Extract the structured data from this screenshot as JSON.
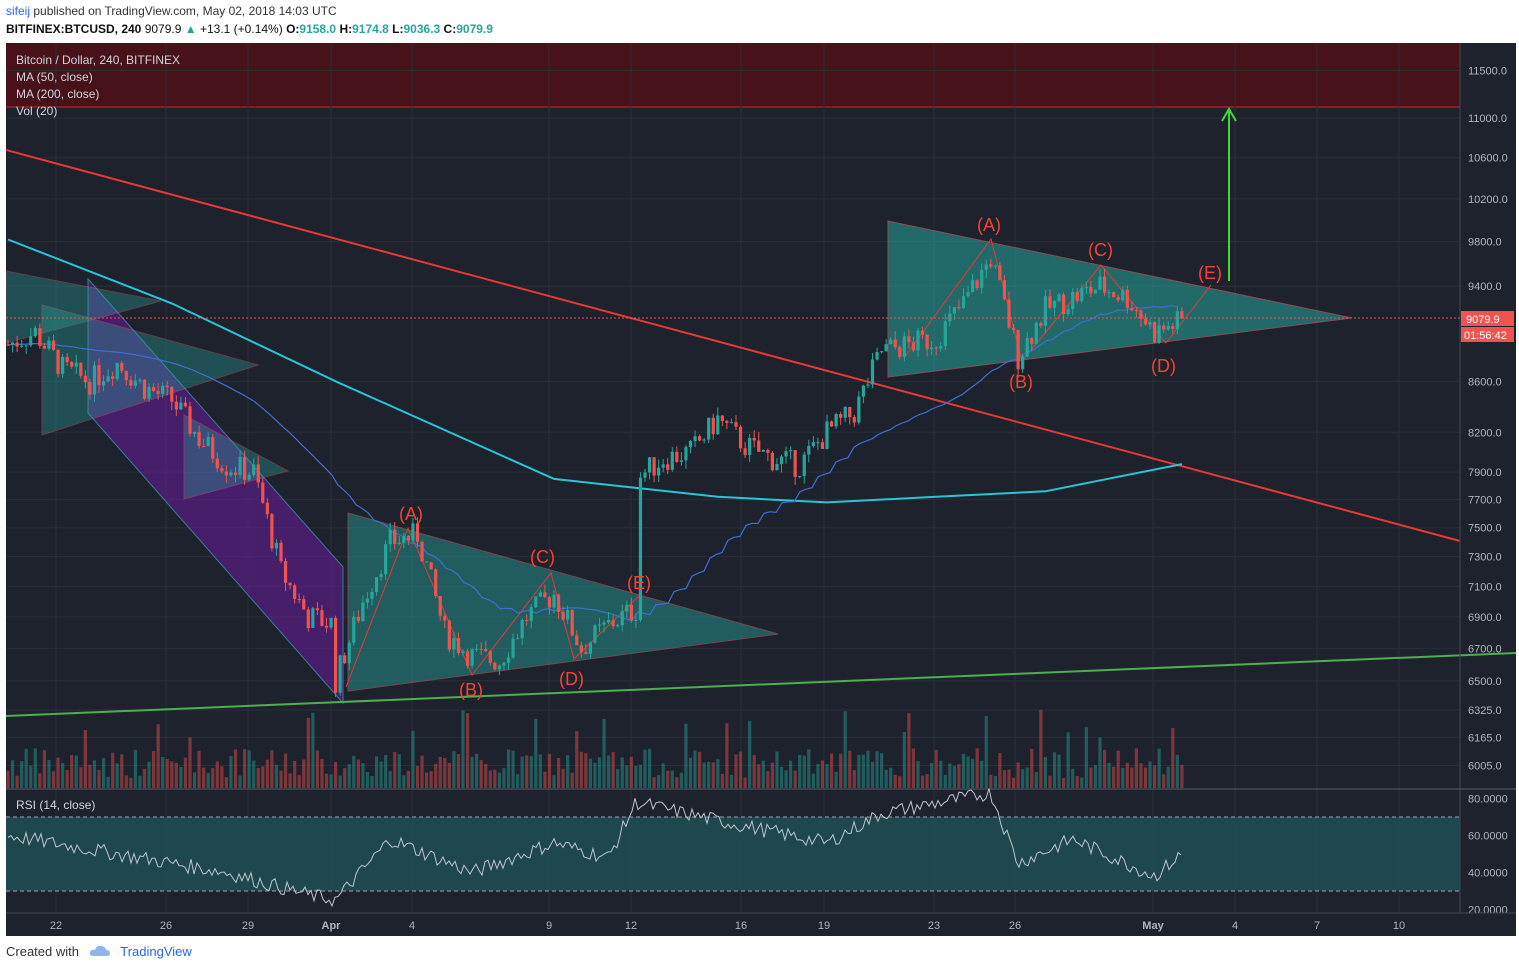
{
  "header": {
    "author": "sifeij",
    "published": "published on TradingView.com, May 02, 2018 14:03 UTC",
    "symbol": "BITFINEX:BTCUSD, 240",
    "last": "9079.9",
    "change": "+13.1 (+0.14%)",
    "o_label": "O:",
    "o": "9158.0",
    "h_label": "H:",
    "h": "9174.8",
    "l_label": "L:",
    "l": "9036.3",
    "c_label": "C:",
    "c": "9079.9"
  },
  "legend": {
    "title": "Bitcoin / Dollar, 240, BITFINEX",
    "ma50": "MA (50, close)",
    "ma200": "MA (200, close)",
    "vol": "Vol (20)",
    "rsi": "RSI (14, close)"
  },
  "price_labels": {
    "last_price": "9079.9",
    "countdown": "01:56:42"
  },
  "annotations": {
    "left_A": "(A)",
    "left_B": "(B)",
    "left_C": "(C)",
    "left_D": "(D)",
    "left_E": "(E)",
    "right_A": "(A)",
    "right_B": "(B)",
    "right_C": "(C)",
    "right_D": "(D)",
    "right_E": "(E)"
  },
  "footer": {
    "created_with": "Created with",
    "brand": "TradingView"
  },
  "colors": {
    "background": "#1e222d",
    "up": "#26a69a",
    "down": "#ef5350",
    "ma50": "#3d6fd1",
    "ma200": "#26c6da",
    "trend_red": "#e53935",
    "trend_green": "#4caf50",
    "target_arrow": "#43d43a",
    "resistance_zone": "#5a141c",
    "wave_label": "#f44336"
  },
  "chart_data": {
    "type": "candlestick",
    "interval": "240",
    "y_axis_ticks": [
      "11500.0",
      "11000.0",
      "10600.0",
      "10200.0",
      "9800.0",
      "9400.0",
      "9079.9",
      "8600.0",
      "8200.0",
      "7900.0",
      "7700.0",
      "7500.0",
      "7300.0",
      "7100.0",
      "6900.0",
      "6700.0",
      "6500.0",
      "6325.0",
      "6165.0",
      "6005.0"
    ],
    "y_axis_scale": "log",
    "price_range": [
      5880,
      11800
    ],
    "x_axis_ticks": [
      "22",
      "26",
      "29",
      "Apr",
      "4",
      "9",
      "12",
      "16",
      "19",
      "23",
      "26",
      "May",
      "4",
      "7",
      "10"
    ],
    "rsi_ticks": [
      "80.0000",
      "60.0000",
      "40.0000",
      "20.0000"
    ],
    "rsi_bands": [
      30,
      70
    ],
    "resistance_zone": [
      11000,
      11800
    ],
    "target_arrow": {
      "from": 9450,
      "to": 11000
    },
    "close_path": [
      [
        "03-20",
        8900
      ],
      [
        "03-21",
        9000
      ],
      [
        "03-22",
        8700
      ],
      [
        "03-23",
        8600
      ],
      [
        "03-24",
        8750
      ],
      [
        "03-25",
        8550
      ],
      [
        "03-26",
        8450
      ],
      [
        "03-27",
        8150
      ],
      [
        "03-28",
        7950
      ],
      [
        "03-29",
        7900
      ],
      [
        "03-30",
        7200
      ],
      [
        "03-31",
        6900
      ],
      [
        "04-01",
        6850
      ],
      [
        "04-01",
        6500
      ],
      [
        "04-02",
        7000
      ],
      [
        "04-03",
        7400
      ],
      [
        "04-04",
        7450
      ],
      [
        "04-05",
        6800
      ],
      [
        "04-06",
        6650
      ],
      [
        "04-07",
        6620
      ],
      [
        "04-08",
        6900
      ],
      [
        "04-09",
        7050
      ],
      [
        "04-10",
        6700
      ],
      [
        "04-11",
        6850
      ],
      [
        "04-12",
        6950
      ],
      [
        "04-12",
        7850
      ],
      [
        "04-13",
        8000
      ],
      [
        "04-14",
        8050
      ],
      [
        "04-15",
        8300
      ],
      [
        "04-16",
        8100
      ],
      [
        "04-17",
        8000
      ],
      [
        "04-18",
        7950
      ],
      [
        "04-19",
        8200
      ],
      [
        "04-20",
        8350
      ],
      [
        "04-21",
        8850
      ],
      [
        "04-22",
        8900
      ],
      [
        "04-23",
        8950
      ],
      [
        "04-24",
        9250
      ],
      [
        "04-25",
        9650
      ],
      [
        "04-26",
        8800
      ],
      [
        "04-27",
        9200
      ],
      [
        "04-28",
        9300
      ],
      [
        "04-29",
        9400
      ],
      [
        "04-30",
        9300
      ],
      [
        "05-01",
        9000
      ],
      [
        "05-02",
        9100
      ]
    ],
    "ma200_path": [
      [
        "03-20",
        9820
      ],
      [
        "03-26",
        9250
      ],
      [
        "04-01",
        8600
      ],
      [
        "04-09",
        7850
      ],
      [
        "04-15",
        7720
      ],
      [
        "04-19",
        7680
      ],
      [
        "04-23",
        7720
      ],
      [
        "04-27",
        7760
      ],
      [
        "05-02",
        7960
      ]
    ],
    "rsi_path": [
      [
        "03-20",
        60
      ],
      [
        "03-24",
        50
      ],
      [
        "03-28",
        40
      ],
      [
        "03-31",
        28
      ],
      [
        "04-01",
        25
      ],
      [
        "04-03",
        58
      ],
      [
        "04-06",
        40
      ],
      [
        "04-09",
        56
      ],
      [
        "04-11",
        48
      ],
      [
        "04-12",
        78
      ],
      [
        "04-15",
        68
      ],
      [
        "04-19",
        56
      ],
      [
        "04-21",
        72
      ],
      [
        "04-25",
        83
      ],
      [
        "04-26",
        45
      ],
      [
        "04-28",
        58
      ],
      [
        "05-01",
        38
      ],
      [
        "05-02",
        50
      ]
    ]
  }
}
